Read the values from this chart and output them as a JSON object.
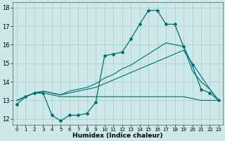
{
  "xlabel": "Humidex (Indice chaleur)",
  "background_color": "#cce8e8",
  "grid_color": "#aacccc",
  "line_color": "#007070",
  "xlim": [
    -0.5,
    23.5
  ],
  "ylim": [
    11.7,
    18.3
  ],
  "yticks": [
    12,
    13,
    14,
    15,
    16,
    17,
    18
  ],
  "xticks": [
    0,
    1,
    2,
    3,
    4,
    5,
    6,
    7,
    8,
    9,
    10,
    11,
    12,
    13,
    14,
    15,
    16,
    17,
    18,
    19,
    20,
    21,
    22,
    23
  ],
  "line1_y": [
    12.8,
    13.2,
    13.4,
    13.4,
    12.2,
    11.9,
    12.2,
    12.2,
    12.3,
    12.9,
    15.4,
    15.5,
    15.6,
    16.3,
    17.1,
    17.85,
    17.85,
    17.1,
    17.1,
    15.9,
    14.9,
    13.6,
    13.4,
    13.0
  ],
  "line2_y": [
    13.0,
    13.2,
    13.4,
    13.4,
    13.3,
    13.2,
    13.2,
    13.2,
    13.2,
    13.2,
    13.2,
    13.2,
    13.2,
    13.2,
    13.2,
    13.2,
    13.2,
    13.2,
    13.2,
    13.2,
    13.1,
    13.0,
    13.0,
    13.0
  ],
  "line3_y": [
    13.0,
    13.2,
    13.4,
    13.5,
    13.4,
    13.3,
    13.4,
    13.5,
    13.6,
    13.7,
    13.9,
    14.1,
    14.3,
    14.5,
    14.7,
    14.9,
    15.1,
    15.3,
    15.5,
    15.7,
    15.0,
    14.3,
    13.6,
    13.0
  ],
  "line4_y": [
    13.0,
    13.2,
    13.4,
    13.5,
    13.4,
    13.3,
    13.5,
    13.6,
    13.7,
    13.9,
    14.2,
    14.4,
    14.7,
    14.9,
    15.2,
    15.5,
    15.8,
    16.1,
    16.0,
    15.9,
    14.6,
    14.0,
    13.6,
    13.0
  ]
}
